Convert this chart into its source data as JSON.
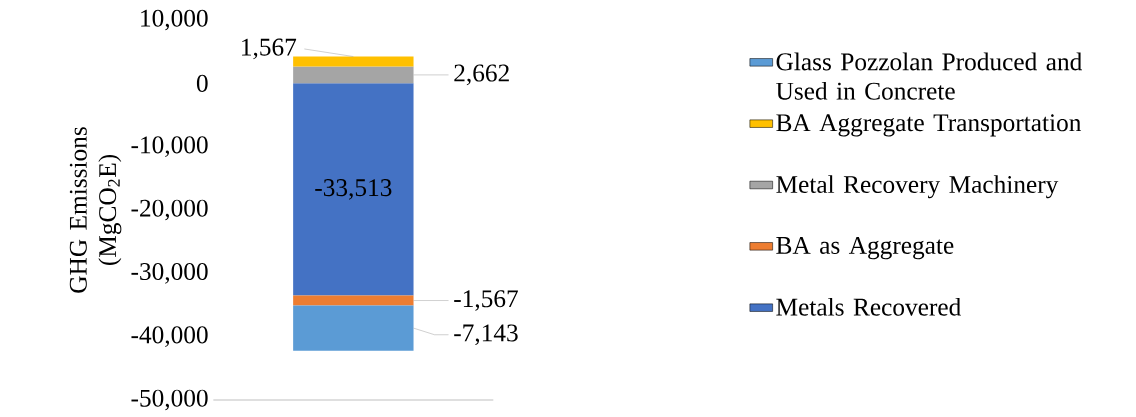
{
  "chart_data": {
    "type": "bar",
    "stacked": true,
    "ylabel": "GHG Emissions (MgCO$_{2}$E)",
    "categories": [
      null
    ],
    "series": [
      {
        "name": "Metals Recovered",
        "color": "#4472c4",
        "values": [
          -33513
        ],
        "value_labels": [
          "-33,513"
        ]
      },
      {
        "name": "BA as Aggregate",
        "color": "#ed7d31",
        "values": [
          -1567
        ],
        "value_labels": [
          "-1,567"
        ]
      },
      {
        "name": "Metal Recovery Machinery",
        "color": "#a5a5a5",
        "values": [
          2662
        ],
        "value_labels": [
          "2,662"
        ]
      },
      {
        "name": "BA Aggregate Transportation",
        "color": "#ffc000",
        "values": [
          1567
        ],
        "value_labels": [
          "1,567"
        ]
      },
      {
        "name": "Glass Pozzolan Produced and Used in Concrete",
        "color": "#5b9bd5",
        "values": [
          -7143
        ],
        "value_labels": [
          "-7,143"
        ]
      }
    ],
    "ylim": [
      -50000,
      10000
    ],
    "yticks": [
      {
        "value": -50000,
        "label": "-50,000"
      },
      {
        "value": -40000,
        "label": "-40,000"
      },
      {
        "value": -30000,
        "label": "-30,000"
      },
      {
        "value": -20000,
        "label": "-20,000"
      },
      {
        "value": -10000,
        "label": "-10,000"
      },
      0,
      {
        "value": 10000,
        "label": "10,000"
      }
    ],
    "legend": "right"
  }
}
